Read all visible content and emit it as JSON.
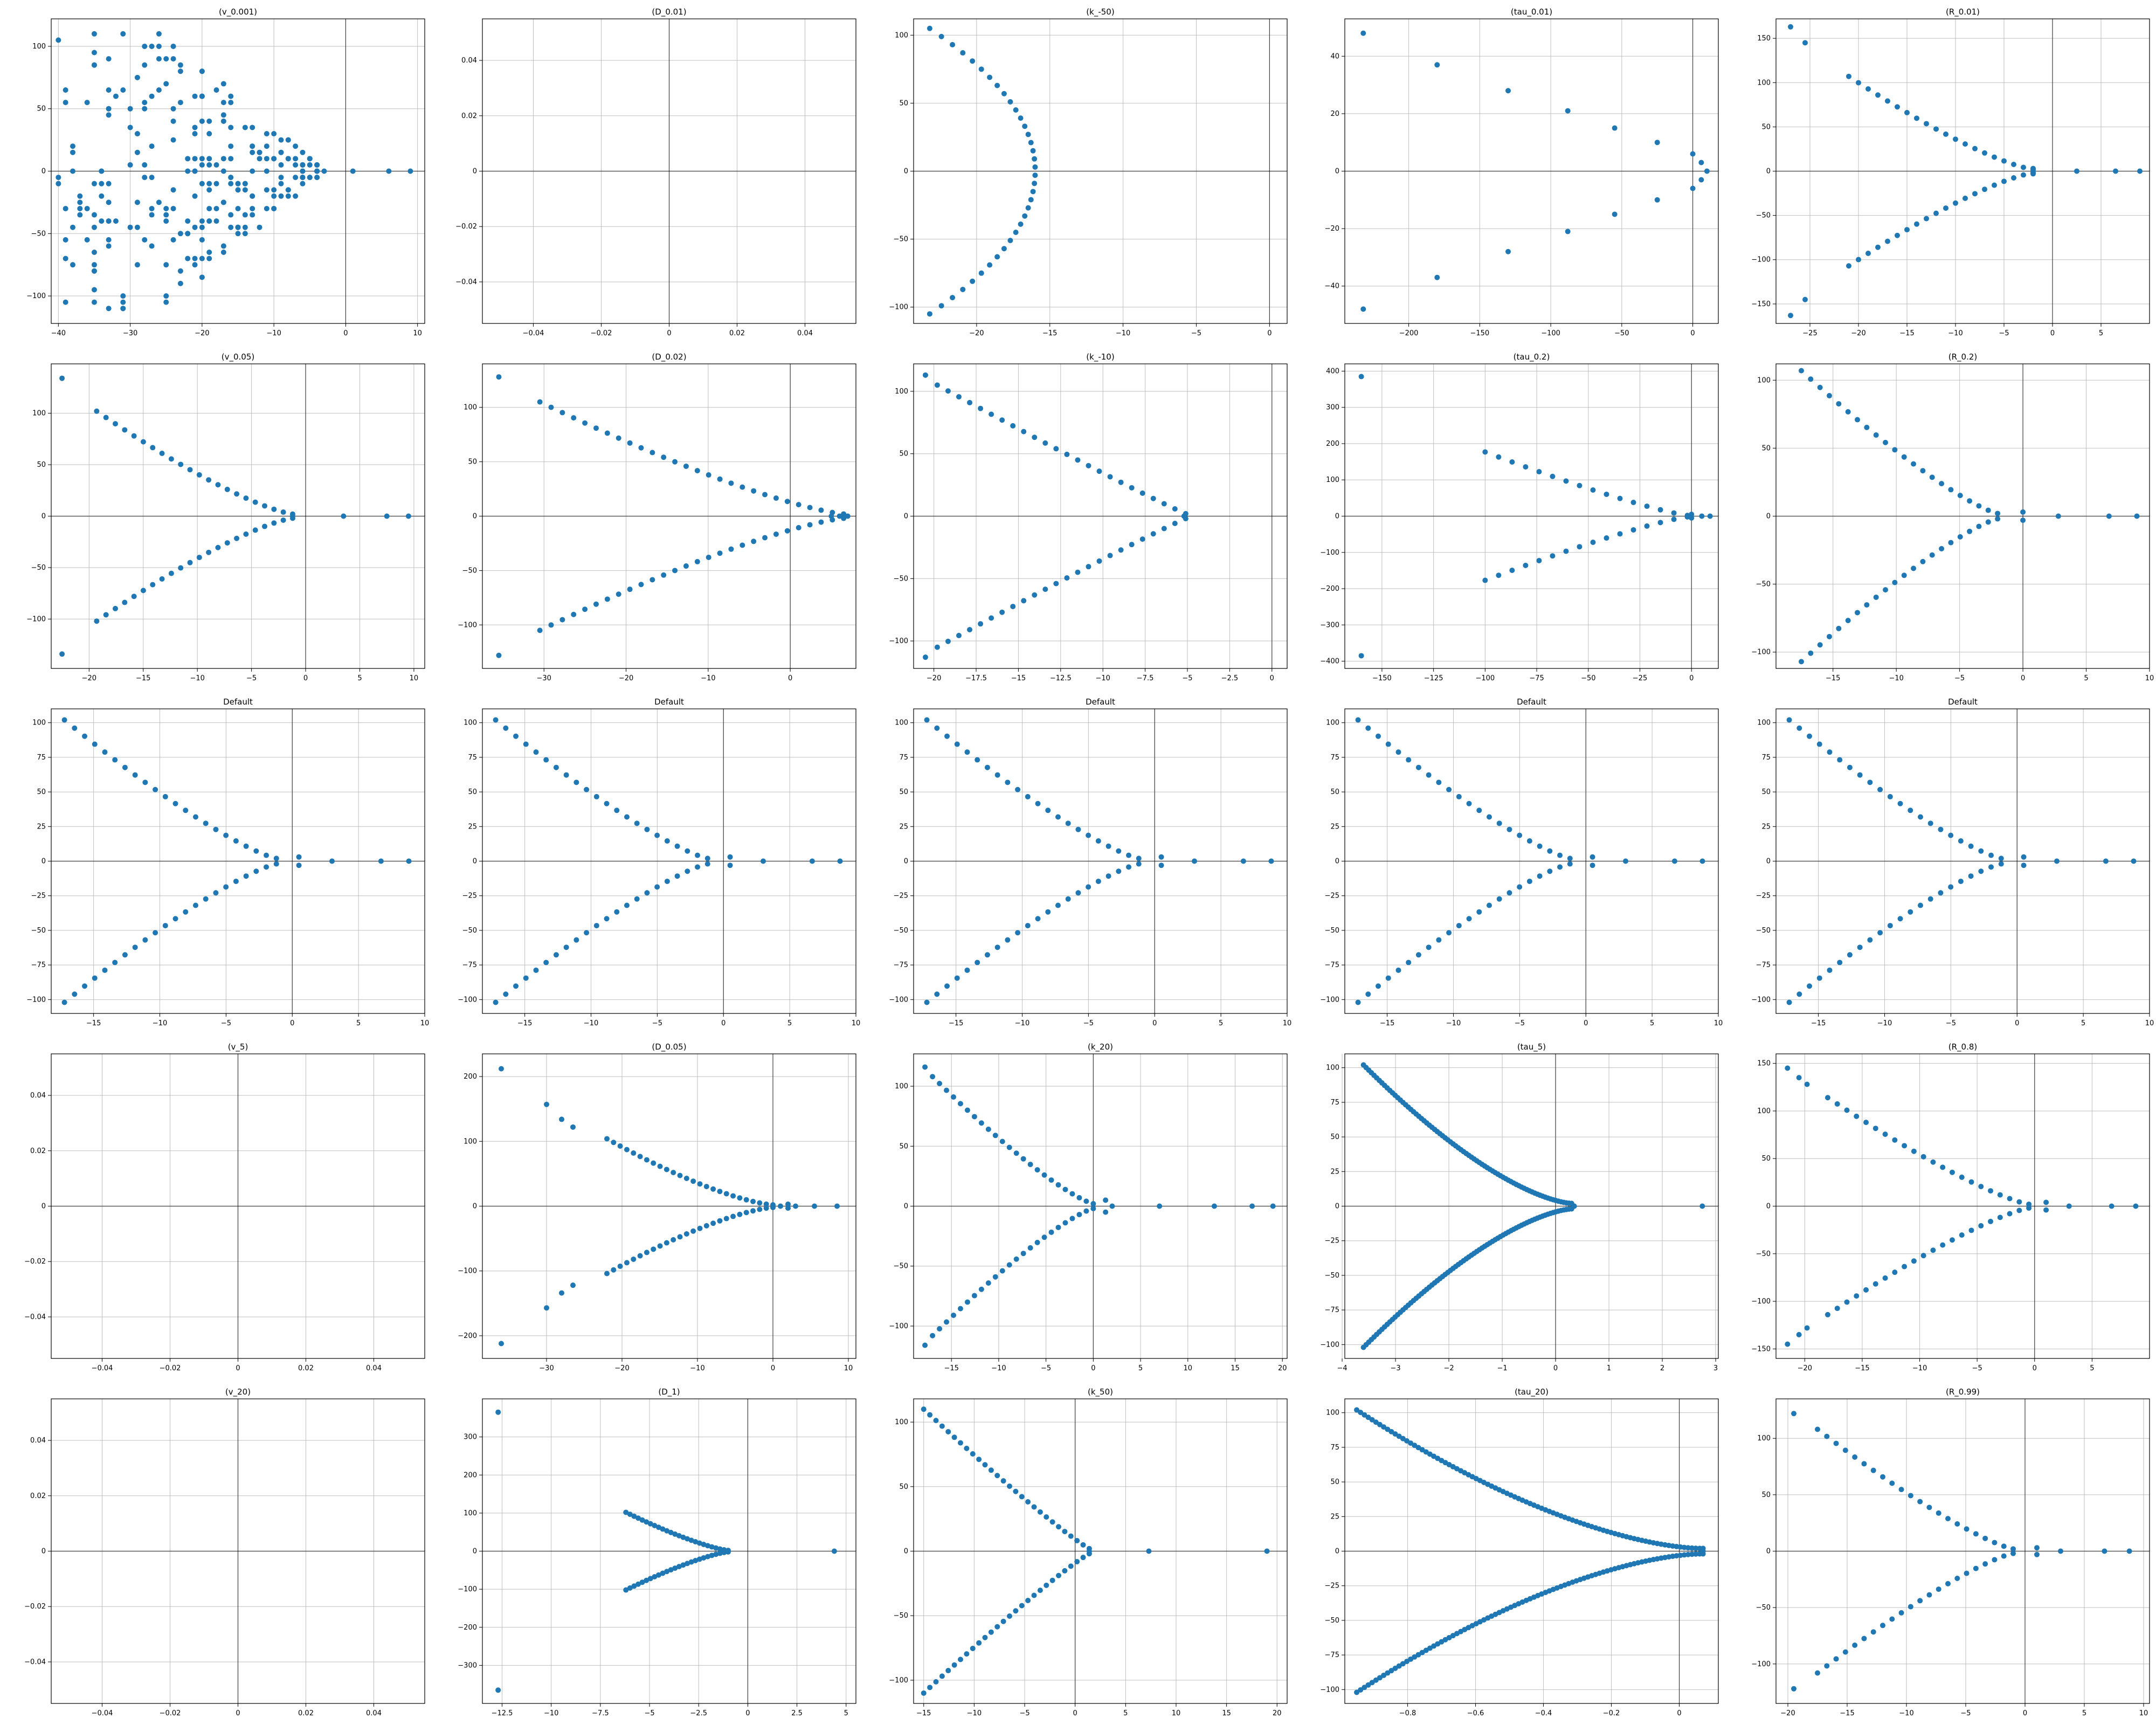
{
  "figure": {
    "colors": {
      "marker": "#1f77b4",
      "grid": "#b0b0b0",
      "axis": "#000000"
    }
  },
  "chart_data": [
    {
      "type": "scatter",
      "title": "(v_0.001)",
      "xlim": [
        -41,
        11
      ],
      "ylim": [
        -122,
        122
      ],
      "xticks": [
        -40,
        -30,
        -20,
        -10,
        0,
        10
      ],
      "yticks": [
        -100,
        -50,
        0,
        50,
        100
      ],
      "grid": true,
      "gen": {
        "kind": "cloud",
        "seed": 7,
        "n": 260,
        "xmin": -40,
        "xmax": -3,
        "yamp": 112,
        "real": [
          -6,
          -3,
          1,
          6,
          9
        ]
      }
    },
    {
      "type": "scatter",
      "title": "(D_0.01)",
      "xlim": [
        -0.055,
        0.055
      ],
      "ylim": [
        -0.055,
        0.055
      ],
      "xticks": [
        -0.04,
        -0.02,
        0.0,
        0.02,
        0.04
      ],
      "yticks": [
        -0.04,
        -0.02,
        0.0,
        0.02,
        0.04
      ],
      "grid": true,
      "points": []
    },
    {
      "type": "scatter",
      "title": "(k_-50)",
      "xlim": [
        -24.3,
        1.2
      ],
      "ylim": [
        -112,
        112
      ],
      "xticks": [
        -20,
        -15,
        -10,
        -5,
        0
      ],
      "yticks": [
        -100,
        -50,
        0,
        50,
        100
      ],
      "grid": true,
      "gen": {
        "kind": "parab",
        "n": 36,
        "x0": -16,
        "xa": -23.2,
        "ymax": 105
      }
    },
    {
      "type": "scatter",
      "title": "(tau_0.01)",
      "xlim": [
        -245,
        18
      ],
      "ylim": [
        -53,
        53
      ],
      "xticks": [
        -200,
        -150,
        -100,
        -50,
        0
      ],
      "yticks": [
        -40,
        -20,
        0,
        20,
        40
      ],
      "grid": true,
      "points": [
        [
          -232,
          48
        ],
        [
          -232,
          -48
        ],
        [
          -180,
          37
        ],
        [
          -180,
          -37
        ],
        [
          -130,
          28
        ],
        [
          -130,
          -28
        ],
        [
          -88,
          21
        ],
        [
          -88,
          -21
        ],
        [
          -55,
          15
        ],
        [
          -55,
          -15
        ],
        [
          -25,
          10
        ],
        [
          -25,
          -10
        ],
        [
          0,
          6
        ],
        [
          0,
          -6
        ],
        [
          6,
          3
        ],
        [
          6,
          -3
        ],
        [
          10,
          0
        ]
      ]
    },
    {
      "type": "scatter",
      "title": "(R_0.01)",
      "xlim": [
        -28.5,
        10
      ],
      "ylim": [
        -172,
        172
      ],
      "xticks": [
        -25,
        -20,
        -15,
        -10,
        -5,
        0,
        5
      ],
      "yticks": [
        -150,
        -100,
        -50,
        0,
        50,
        100,
        150
      ],
      "grid": true,
      "gen": {
        "kind": "branch",
        "n": 20,
        "xl": -21,
        "xr": -2,
        "ymax": 105,
        "p": 1.3,
        "extra": [
          [
            -27,
            163
          ],
          [
            -27,
            -163
          ],
          [
            -25.5,
            145
          ],
          [
            -25.5,
            -145
          ],
          [
            -2,
            3
          ],
          [
            -2,
            -3
          ],
          [
            -2,
            0
          ]
        ],
        "real": [
          2.5,
          6.5,
          9
        ]
      }
    },
    {
      "type": "scatter",
      "title": "(v_0.05)",
      "xlim": [
        -23.5,
        11
      ],
      "ylim": [
        -148,
        148
      ],
      "xticks": [
        -20,
        -15,
        -10,
        -5,
        0,
        5,
        10
      ],
      "yticks": [
        -100,
        -50,
        0,
        50,
        100
      ],
      "grid": true,
      "gen": {
        "kind": "branch",
        "n": 22,
        "xl": -19.3,
        "xr": -1.2,
        "ymax": 100,
        "p": 1.3,
        "extra": [
          [
            -22.5,
            134
          ],
          [
            -22.5,
            -134
          ],
          [
            -1.2,
            0
          ]
        ],
        "real": [
          3.5,
          7.5,
          9.5
        ]
      }
    },
    {
      "type": "scatter",
      "title": "(D_0.02)",
      "xlim": [
        -37.5,
        8
      ],
      "ylim": [
        -140,
        140
      ],
      "xticks": [
        -30,
        -20,
        -10,
        0
      ],
      "yticks": [
        -100,
        -50,
        0,
        50,
        100
      ],
      "grid": true,
      "gen": {
        "kind": "branch",
        "n": 28,
        "xl": -30.5,
        "xr": 6.5,
        "ymax": 103,
        "p": 1.3,
        "extra": [
          [
            -35.5,
            128
          ],
          [
            -35.5,
            -128
          ],
          [
            5,
            0
          ],
          [
            6,
            0
          ],
          [
            7,
            0
          ]
        ],
        "real": []
      }
    },
    {
      "type": "scatter",
      "title": "(k_-10)",
      "xlim": [
        -21.2,
        0.9
      ],
      "ylim": [
        -122,
        122
      ],
      "xticks": [
        -20,
        -17.5,
        -15,
        -12.5,
        -10,
        -7.5,
        -5,
        -2.5,
        0
      ],
      "yticks": [
        -100,
        -50,
        0,
        50,
        100
      ],
      "grid": true,
      "gen": {
        "kind": "branch",
        "n": 24,
        "xl": -19.8,
        "xr": -5.1,
        "ymax": 103,
        "p": 1.05,
        "extra": [
          [
            -20.5,
            113
          ],
          [
            -20.5,
            -113
          ],
          [
            -5.2,
            0
          ]
        ],
        "real": []
      }
    },
    {
      "type": "scatter",
      "title": "(tau_0.2)",
      "xlim": [
        -168,
        13
      ],
      "ylim": [
        -420,
        420
      ],
      "xticks": [
        -150,
        -125,
        -100,
        -75,
        -50,
        -25,
        0
      ],
      "yticks": [
        -400,
        -300,
        -200,
        -100,
        0,
        100,
        200,
        300,
        400
      ],
      "grid": true,
      "gen": {
        "kind": "branch",
        "n": 16,
        "xl": -100,
        "xr": -2,
        "ymax": 175,
        "p": 1.2,
        "extra": [
          [
            -160,
            385
          ],
          [
            -160,
            -385
          ],
          [
            0,
            5
          ],
          [
            0,
            -5
          ],
          [
            5,
            0
          ],
          [
            9,
            0
          ]
        ],
        "real": []
      }
    },
    {
      "type": "scatter",
      "title": "(R_0.2)",
      "xlim": [
        -19.5,
        10
      ],
      "ylim": [
        -112,
        112
      ],
      "xticks": [
        -15,
        -10,
        -5,
        0,
        5,
        10
      ],
      "yticks": [
        -100,
        -50,
        0,
        50,
        100
      ],
      "grid": true,
      "gen": {
        "kind": "branch",
        "n": 22,
        "xl": -17.5,
        "xr": -2,
        "ymax": 105,
        "p": 1.25,
        "extra": [
          [
            0,
            3
          ],
          [
            0,
            -3
          ]
        ],
        "real": [
          2.8,
          6.8,
          9
        ]
      }
    },
    {
      "type": "scatter",
      "title": "Default",
      "xlim": [
        -18.2,
        10
      ],
      "ylim": [
        -110,
        110
      ],
      "xticks": [
        -15,
        -10,
        -5,
        0,
        5,
        10
      ],
      "yticks": [
        -100,
        -75,
        -50,
        -25,
        0,
        25,
        50,
        75,
        100
      ],
      "grid": true,
      "gen": {
        "kind": "branch",
        "n": 22,
        "xl": -17.2,
        "xr": -1.2,
        "ymax": 100,
        "p": 1.25,
        "extra": [
          [
            0.5,
            3
          ],
          [
            0.5,
            -3
          ]
        ],
        "real": [
          3,
          6.7,
          8.8
        ]
      }
    },
    {
      "type": "scatter",
      "title": "Default",
      "xlim": [
        -18.2,
        10
      ],
      "ylim": [
        -110,
        110
      ],
      "xticks": [
        -15,
        -10,
        -5,
        0,
        5,
        10
      ],
      "yticks": [
        -100,
        -75,
        -50,
        -25,
        0,
        25,
        50,
        75,
        100
      ],
      "grid": true,
      "gen": {
        "kind": "branch",
        "n": 22,
        "xl": -17.2,
        "xr": -1.2,
        "ymax": 100,
        "p": 1.25,
        "extra": [
          [
            0.5,
            3
          ],
          [
            0.5,
            -3
          ]
        ],
        "real": [
          3,
          6.7,
          8.8
        ]
      }
    },
    {
      "type": "scatter",
      "title": "Default",
      "xlim": [
        -18.2,
        10
      ],
      "ylim": [
        -110,
        110
      ],
      "xticks": [
        -15,
        -10,
        -5,
        0,
        5,
        10
      ],
      "yticks": [
        -100,
        -75,
        -50,
        -25,
        0,
        25,
        50,
        75,
        100
      ],
      "grid": true,
      "gen": {
        "kind": "branch",
        "n": 22,
        "xl": -17.2,
        "xr": -1.2,
        "ymax": 100,
        "p": 1.25,
        "extra": [
          [
            0.5,
            3
          ],
          [
            0.5,
            -3
          ]
        ],
        "real": [
          3,
          6.7,
          8.8
        ]
      }
    },
    {
      "type": "scatter",
      "title": "Default",
      "xlim": [
        -18.2,
        10
      ],
      "ylim": [
        -110,
        110
      ],
      "xticks": [
        -15,
        -10,
        -5,
        0,
        5,
        10
      ],
      "yticks": [
        -100,
        -75,
        -50,
        -25,
        0,
        25,
        50,
        75,
        100
      ],
      "grid": true,
      "gen": {
        "kind": "branch",
        "n": 22,
        "xl": -17.2,
        "xr": -1.2,
        "ymax": 100,
        "p": 1.25,
        "extra": [
          [
            0.5,
            3
          ],
          [
            0.5,
            -3
          ]
        ],
        "real": [
          3,
          6.7,
          8.8
        ]
      }
    },
    {
      "type": "scatter",
      "title": "Default",
      "xlim": [
        -18.2,
        10
      ],
      "ylim": [
        -110,
        110
      ],
      "xticks": [
        -15,
        -10,
        -5,
        0,
        5,
        10
      ],
      "yticks": [
        -100,
        -75,
        -50,
        -25,
        0,
        25,
        50,
        75,
        100
      ],
      "grid": true,
      "gen": {
        "kind": "branch",
        "n": 22,
        "xl": -17.2,
        "xr": -1.2,
        "ymax": 100,
        "p": 1.25,
        "extra": [
          [
            0.5,
            3
          ],
          [
            0.5,
            -3
          ]
        ],
        "real": [
          3,
          6.7,
          8.8
        ]
      }
    },
    {
      "type": "scatter",
      "title": "(v_5)",
      "xlim": [
        -0.055,
        0.055
      ],
      "ylim": [
        -0.055,
        0.055
      ],
      "xticks": [
        -0.04,
        -0.02,
        0.0,
        0.02,
        0.04
      ],
      "yticks": [
        -0.04,
        -0.02,
        0.0,
        0.02,
        0.04
      ],
      "grid": true,
      "points": []
    },
    {
      "type": "scatter",
      "title": "(D_0.05)",
      "xlim": [
        -38.5,
        11
      ],
      "ylim": [
        -235,
        235
      ],
      "xticks": [
        -30,
        -20,
        -10,
        0,
        10
      ],
      "yticks": [
        -200,
        -100,
        0,
        100,
        200
      ],
      "grid": true,
      "gen": {
        "kind": "branch",
        "n": 26,
        "xl": -22,
        "xr": 0,
        "ymax": 102,
        "p": 1.4,
        "extra": [
          [
            -36,
            212
          ],
          [
            -36,
            -212
          ],
          [
            -30,
            157
          ],
          [
            -30,
            -157
          ],
          [
            -28,
            134
          ],
          [
            -28,
            -134
          ],
          [
            -26.5,
            122
          ],
          [
            -26.5,
            -122
          ],
          [
            2,
            3
          ],
          [
            2,
            -3
          ]
        ],
        "real": [
          1,
          3,
          5.5,
          8.5
        ]
      }
    },
    {
      "type": "scatter",
      "title": "(k_20)",
      "xlim": [
        -19,
        20.5
      ],
      "ylim": [
        -127,
        127
      ],
      "xticks": [
        -15,
        -10,
        -5,
        0,
        5,
        10,
        15,
        20
      ],
      "yticks": [
        -100,
        -50,
        0,
        50,
        100
      ],
      "grid": true,
      "gen": {
        "kind": "branch",
        "n": 24,
        "xl": -17,
        "xr": 0,
        "ymax": 106,
        "p": 1.25,
        "extra": [
          [
            -17.8,
            116
          ],
          [
            -17.8,
            -116
          ],
          [
            1.3,
            5
          ],
          [
            1.3,
            -5
          ],
          [
            2,
            0
          ]
        ],
        "real": [
          7,
          12.8,
          16.8,
          19
        ]
      }
    },
    {
      "type": "scatter",
      "title": "(tau_5)",
      "xlim": [
        -3.95,
        3.05
      ],
      "ylim": [
        -110,
        110
      ],
      "xticks": [
        -4,
        -3,
        -2,
        -1,
        0,
        1,
        2,
        3
      ],
      "yticks": [
        -100,
        -75,
        -50,
        -25,
        0,
        25,
        50,
        75,
        100
      ],
      "grid": true,
      "gen": {
        "kind": "branch",
        "n": 80,
        "xl": -3.6,
        "xr": 0.3,
        "ymax": 100,
        "p": 1.5,
        "extra": [
          [
            0.35,
            0
          ]
        ],
        "real": [
          2.75
        ]
      }
    },
    {
      "type": "scatter",
      "title": "(R_0.8)",
      "xlim": [
        -22.5,
        10
      ],
      "ylim": [
        -160,
        160
      ],
      "xticks": [
        -20,
        -15,
        -10,
        -5,
        0,
        5
      ],
      "yticks": [
        -150,
        -100,
        -50,
        0,
        50,
        100,
        150
      ],
      "grid": true,
      "gen": {
        "kind": "branch",
        "n": 22,
        "xl": -18,
        "xr": -0.5,
        "ymax": 112,
        "p": 1.25,
        "extra": [
          [
            -21.5,
            145
          ],
          [
            -21.5,
            -145
          ],
          [
            -20.5,
            135
          ],
          [
            -20.5,
            -135
          ],
          [
            -19.8,
            128
          ],
          [
            -19.8,
            -128
          ],
          [
            1,
            4
          ],
          [
            1,
            -4
          ]
        ],
        "real": [
          3,
          6.7,
          8.8
        ]
      }
    },
    {
      "type": "scatter",
      "title": "(v_20)",
      "xlim": [
        -0.055,
        0.055
      ],
      "ylim": [
        -0.055,
        0.055
      ],
      "xticks": [
        -0.04,
        -0.02,
        0.0,
        0.02,
        0.04
      ],
      "yticks": [
        -0.04,
        -0.02,
        0.0,
        0.02,
        0.04
      ],
      "grid": true,
      "points": []
    },
    {
      "type": "scatter",
      "title": "(D_1)",
      "xlim": [
        -13.5,
        5.5
      ],
      "ylim": [
        -400,
        400
      ],
      "xticks": [
        -12.5,
        -10,
        -7.5,
        -5,
        -2.5,
        0,
        2.5,
        5
      ],
      "yticks": [
        -300,
        -200,
        -100,
        0,
        100,
        200,
        300
      ],
      "grid": true,
      "gen": {
        "kind": "branch",
        "n": 26,
        "xl": -6.2,
        "xr": -1,
        "ymax": 100,
        "p": 1.3,
        "extra": [
          [
            -12.7,
            365
          ],
          [
            -12.7,
            -365
          ],
          [
            -1,
            0
          ]
        ],
        "real": [
          4.4
        ]
      }
    },
    {
      "type": "scatter",
      "title": "(k_50)",
      "xlim": [
        -16,
        21
      ],
      "ylim": [
        -118,
        118
      ],
      "xticks": [
        -15,
        -10,
        -5,
        0,
        5,
        10,
        15,
        20
      ],
      "yticks": [
        -100,
        -50,
        0,
        50,
        100
      ],
      "grid": true,
      "gen": {
        "kind": "branch",
        "n": 28,
        "xl": -15,
        "xr": 1.4,
        "ymax": 108,
        "p": 1.1,
        "extra": [
          [
            1.4,
            0
          ]
        ],
        "real": [
          7.3,
          19
        ]
      }
    },
    {
      "type": "scatter",
      "title": "(tau_20)",
      "xlim": [
        -0.985,
        0.115
      ],
      "ylim": [
        -110,
        110
      ],
      "xticks": [
        -0.8,
        -0.6,
        -0.4,
        -0.2,
        0.0
      ],
      "yticks": [
        -100,
        -75,
        -50,
        -25,
        0,
        25,
        50,
        75,
        100
      ],
      "grid": true,
      "gen": {
        "kind": "branch",
        "n": 90,
        "xl": -0.95,
        "xr": 0.06,
        "ymax": 100,
        "p": 1.6,
        "extra": [
          [
            0.07,
            0
          ],
          [
            0.07,
            2
          ],
          [
            0.07,
            -2
          ]
        ],
        "real": []
      }
    },
    {
      "type": "scatter",
      "title": "(R_0.99)",
      "xlim": [
        -21,
        10.5
      ],
      "ylim": [
        -135,
        135
      ],
      "xticks": [
        -20,
        -15,
        -10,
        -5,
        0,
        5,
        10
      ],
      "yticks": [
        -100,
        -50,
        0,
        50,
        100
      ],
      "grid": true,
      "gen": {
        "kind": "branch",
        "n": 22,
        "xl": -17.5,
        "xr": -1,
        "ymax": 106,
        "p": 1.25,
        "extra": [
          [
            -19.5,
            122
          ],
          [
            -19.5,
            -122
          ],
          [
            1,
            3
          ],
          [
            1,
            -3
          ]
        ],
        "real": [
          3,
          6.7,
          8.8
        ]
      }
    }
  ]
}
